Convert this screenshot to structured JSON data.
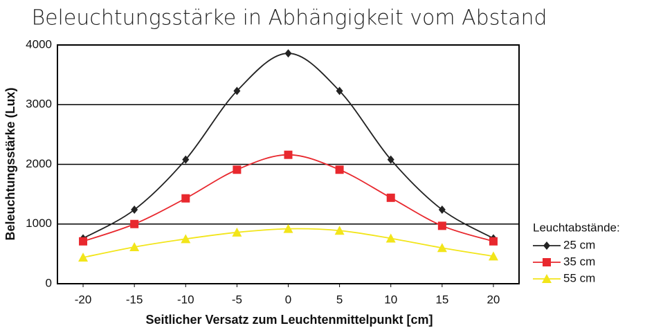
{
  "chart_data": {
    "type": "line",
    "title": "Beleuchtungsstärke in Abhängigkeit vom Abstand",
    "x_label": "Seitlicher Versatz zum Leuchtenmittelpunkt [cm]",
    "y_label": "Beleuchtungsstärke (Lux)",
    "legend_title": "Leuchtabstände:",
    "legend_position": "right",
    "grid": true,
    "smooth": true,
    "x": [
      -20,
      -15,
      -10,
      -5,
      0,
      5,
      10,
      15,
      20
    ],
    "xlim": [
      -22.5,
      22.5
    ],
    "xticks": [
      -20,
      -15,
      -10,
      -5,
      0,
      5,
      10,
      15,
      20
    ],
    "ylim": [
      0,
      4000
    ],
    "yticks": [
      0,
      1000,
      2000,
      3000,
      4000
    ],
    "series": [
      {
        "name": "25 cm",
        "color": "#222222",
        "marker": "diamond",
        "values": [
          760,
          1240,
          2080,
          3230,
          3860,
          3230,
          2080,
          1240,
          760
        ]
      },
      {
        "name": "35 cm",
        "color": "#e8282e",
        "marker": "square",
        "values": [
          710,
          1000,
          1430,
          1910,
          2160,
          1910,
          1440,
          970,
          710
        ]
      },
      {
        "name": "55 cm",
        "color": "#f2e51a",
        "marker": "triangle",
        "values": [
          440,
          615,
          750,
          860,
          920,
          890,
          760,
          600,
          460
        ]
      }
    ]
  }
}
